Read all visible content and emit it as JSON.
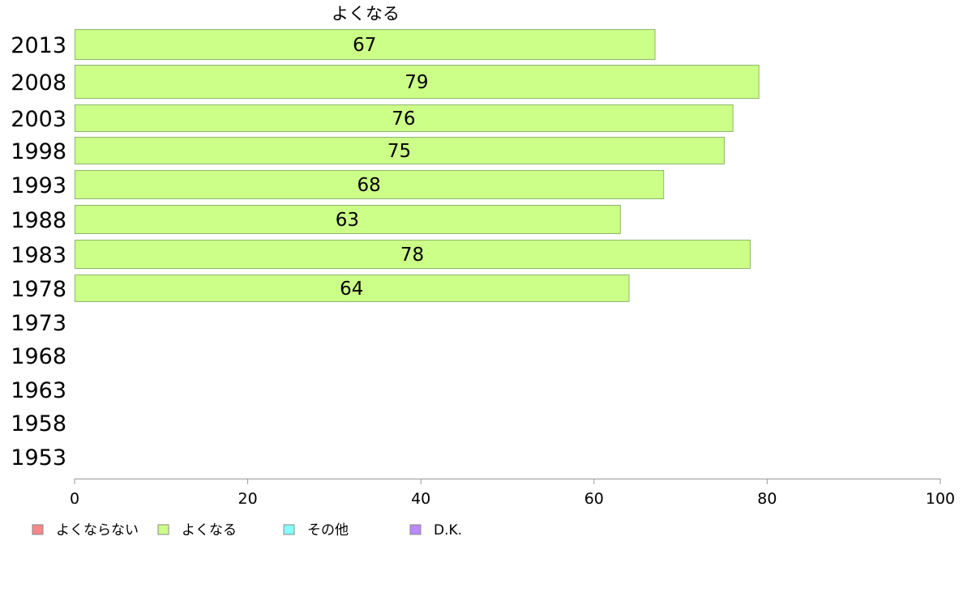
{
  "chart_data": {
    "type": "bar",
    "orientation": "horizontal",
    "title": "",
    "xlabel": "",
    "ylabel": "",
    "series_title": "よくなる",
    "categories": [
      "2013",
      "2008",
      "2003",
      "1998",
      "1993",
      "1988",
      "1983",
      "1978",
      "1973",
      "1968",
      "1963",
      "1958",
      "1953"
    ],
    "series": [
      {
        "name": "よくなる",
        "values": [
          67,
          79,
          76,
          75,
          68,
          63,
          78,
          64,
          null,
          null,
          null,
          null,
          null
        ]
      }
    ],
    "xlim": [
      0,
      100
    ],
    "xticks": [
      "0",
      "20",
      "40",
      "60",
      "80",
      "100"
    ],
    "grid": false,
    "legend_position": "bottom-left",
    "legend": [
      {
        "label": "よくならない",
        "color": "#f4888a"
      },
      {
        "label": "よくなる",
        "color": "#ccff88"
      },
      {
        "label": "その他",
        "color": "#88ffff"
      },
      {
        "label": "D.K.",
        "color": "#bb88ff"
      }
    ],
    "bar_color": "#ccff88",
    "bar_border_color": "#8cb66c"
  }
}
